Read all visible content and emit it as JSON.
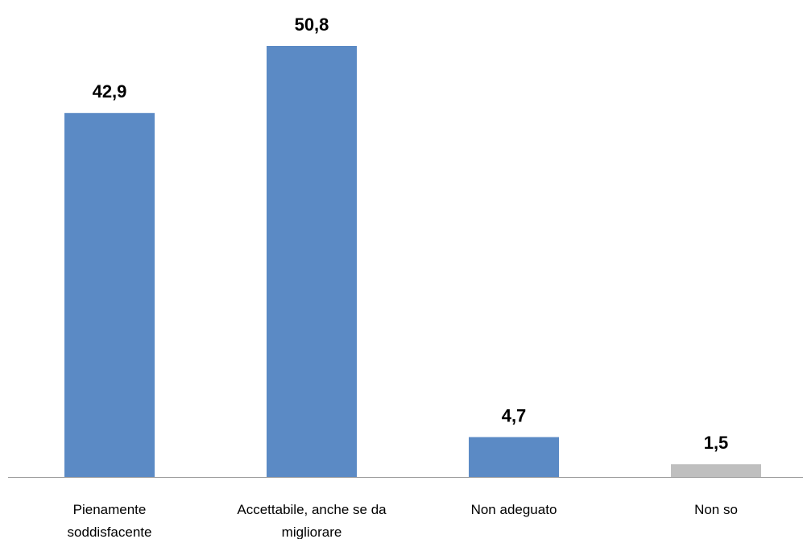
{
  "chart_data": {
    "type": "bar",
    "categories": [
      [
        "Pienamente",
        "soddisfacente"
      ],
      [
        "Accettabile, anche se da",
        "migliorare"
      ],
      [
        "Non adeguato"
      ],
      [
        "Non so"
      ]
    ],
    "values": [
      42.9,
      50.8,
      4.7,
      1.5
    ],
    "value_labels": [
      "42,9",
      "50,8",
      "4,7",
      "1,5"
    ],
    "bar_colors": [
      "#5b8ac5",
      "#5b8ac5",
      "#5b8ac5",
      "#bfbfbf"
    ],
    "axis_color": "#9a9a9a",
    "ylim": [
      0,
      50.8
    ],
    "grid": false,
    "legend": "none",
    "title": "",
    "xlabel": "",
    "ylabel": ""
  }
}
